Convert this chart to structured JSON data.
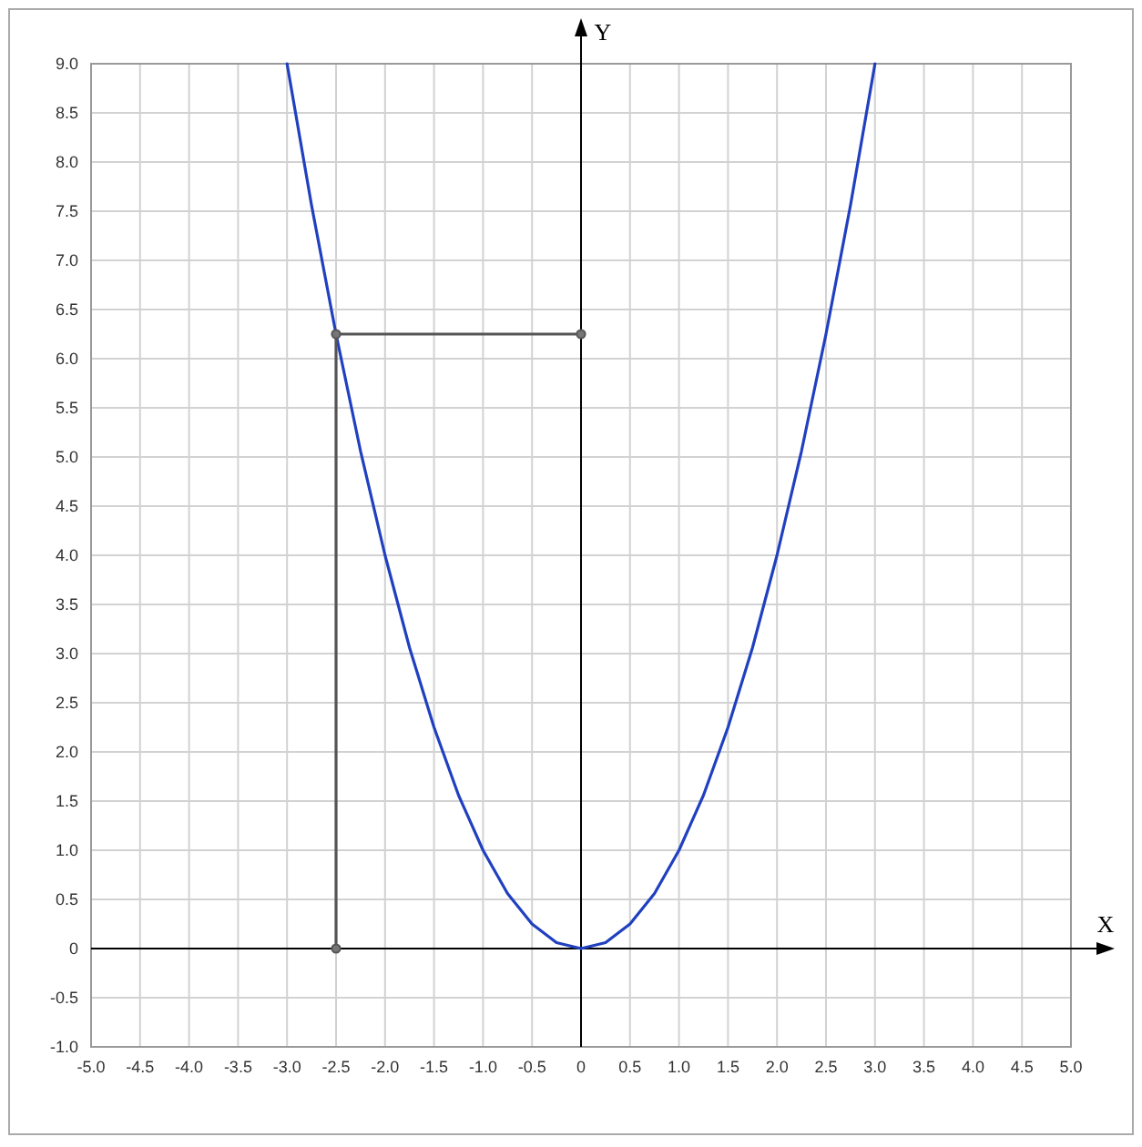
{
  "chart_data": {
    "type": "line",
    "xlabel": "X",
    "ylabel": "Y",
    "xlim": [
      -5,
      5
    ],
    "ylim": [
      -1,
      9
    ],
    "xticks": [
      {
        "value": -5,
        "label": "-5.0"
      },
      {
        "value": -4.5,
        "label": "-4.5"
      },
      {
        "value": -4,
        "label": "-4.0"
      },
      {
        "value": -3.5,
        "label": "-3.5"
      },
      {
        "value": -3,
        "label": "-3.0"
      },
      {
        "value": -2.5,
        "label": "-2.5"
      },
      {
        "value": -2,
        "label": "-2.0"
      },
      {
        "value": -1.5,
        "label": "-1.5"
      },
      {
        "value": -1,
        "label": "-1.0"
      },
      {
        "value": -0.5,
        "label": "-0.5"
      },
      0,
      {
        "value": 0.5,
        "label": "0.5"
      },
      {
        "value": 1,
        "label": "1.0"
      },
      {
        "value": 1.5,
        "label": "1.5"
      },
      {
        "value": 2,
        "label": "2.0"
      },
      {
        "value": 2.5,
        "label": "2.5"
      },
      {
        "value": 3,
        "label": "3.0"
      },
      {
        "value": 3.5,
        "label": "3.5"
      },
      {
        "value": 4,
        "label": "4.0"
      },
      {
        "value": 4.5,
        "label": "4.5"
      },
      {
        "value": 5,
        "label": "5.0"
      }
    ],
    "yticks": [
      {
        "value": -1,
        "label": "-1.0"
      },
      {
        "value": -0.5,
        "label": "-0.5"
      },
      0,
      {
        "value": 0.5,
        "label": "0.5"
      },
      {
        "value": 1,
        "label": "1.0"
      },
      {
        "value": 1.5,
        "label": "1.5"
      },
      {
        "value": 2,
        "label": "2.0"
      },
      {
        "value": 2.5,
        "label": "2.5"
      },
      {
        "value": 3,
        "label": "3.0"
      },
      {
        "value": 3.5,
        "label": "3.5"
      },
      {
        "value": 4,
        "label": "4.0"
      },
      {
        "value": 4.5,
        "label": "4.5"
      },
      {
        "value": 5,
        "label": "5.0"
      },
      {
        "value": 5.5,
        "label": "5.5"
      },
      {
        "value": 6,
        "label": "6.0"
      },
      {
        "value": 6.5,
        "label": "6.5"
      },
      {
        "value": 7,
        "label": "7.0"
      },
      {
        "value": 7.5,
        "label": "7.5"
      },
      {
        "value": 8,
        "label": "8.0"
      },
      {
        "value": 8.5,
        "label": "8.5"
      },
      {
        "value": 9,
        "label": "9.0"
      }
    ],
    "grid": true,
    "marker": "none",
    "line_style": "solid",
    "series": [
      {
        "color": "#2040c0",
        "x": [
          -3,
          -2.75,
          -2.5,
          -2.25,
          -2,
          -1.75,
          -1.5,
          -1.25,
          -1,
          -0.75,
          -0.5,
          -0.25,
          0,
          0.25,
          0.5,
          0.75,
          1,
          1.25,
          1.5,
          1.75,
          2,
          2.25,
          2.5,
          2.75,
          3
        ],
        "values": [
          9,
          7.56,
          6.25,
          5.06,
          4,
          3.06,
          2.25,
          1.56,
          1,
          0.56,
          0.25,
          0.06,
          0,
          0.06,
          0.25,
          0.56,
          1,
          1.56,
          2.25,
          3.06,
          4,
          5.06,
          6.25,
          7.56,
          9
        ]
      },
      {
        "color": "#555555",
        "marker": "circle",
        "x": [
          -2.5,
          -2.5,
          0
        ],
        "values": [
          0,
          6.25,
          6.25
        ]
      }
    ]
  }
}
